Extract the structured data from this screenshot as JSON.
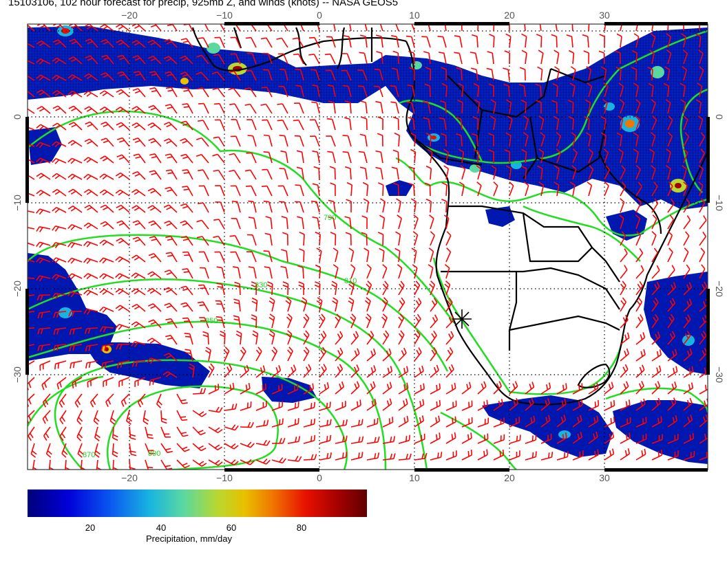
{
  "title": "15103106, 102 hour forecast for precip, 925mb Z, and winds (knots) -- NASA GEOS5",
  "lon_ticks": [
    "−20",
    "−10",
    "0",
    "10",
    "20",
    "30"
  ],
  "lat_ticks": [
    "0",
    "−10",
    "−20",
    "−30"
  ],
  "contour_labels": [
    "790",
    "810",
    "830",
    "850",
    "870",
    "890"
  ],
  "colorbar": {
    "ticks": [
      "20",
      "40",
      "60",
      "80"
    ],
    "label": "Precipitation, mm/day"
  },
  "colors": {
    "barb": "#ff0000",
    "contour": "#22dd22",
    "coast": "#000000",
    "precip_low": "#00007a",
    "precip_high": "#600000"
  },
  "icons": [
    "station-cross-icon"
  ]
}
